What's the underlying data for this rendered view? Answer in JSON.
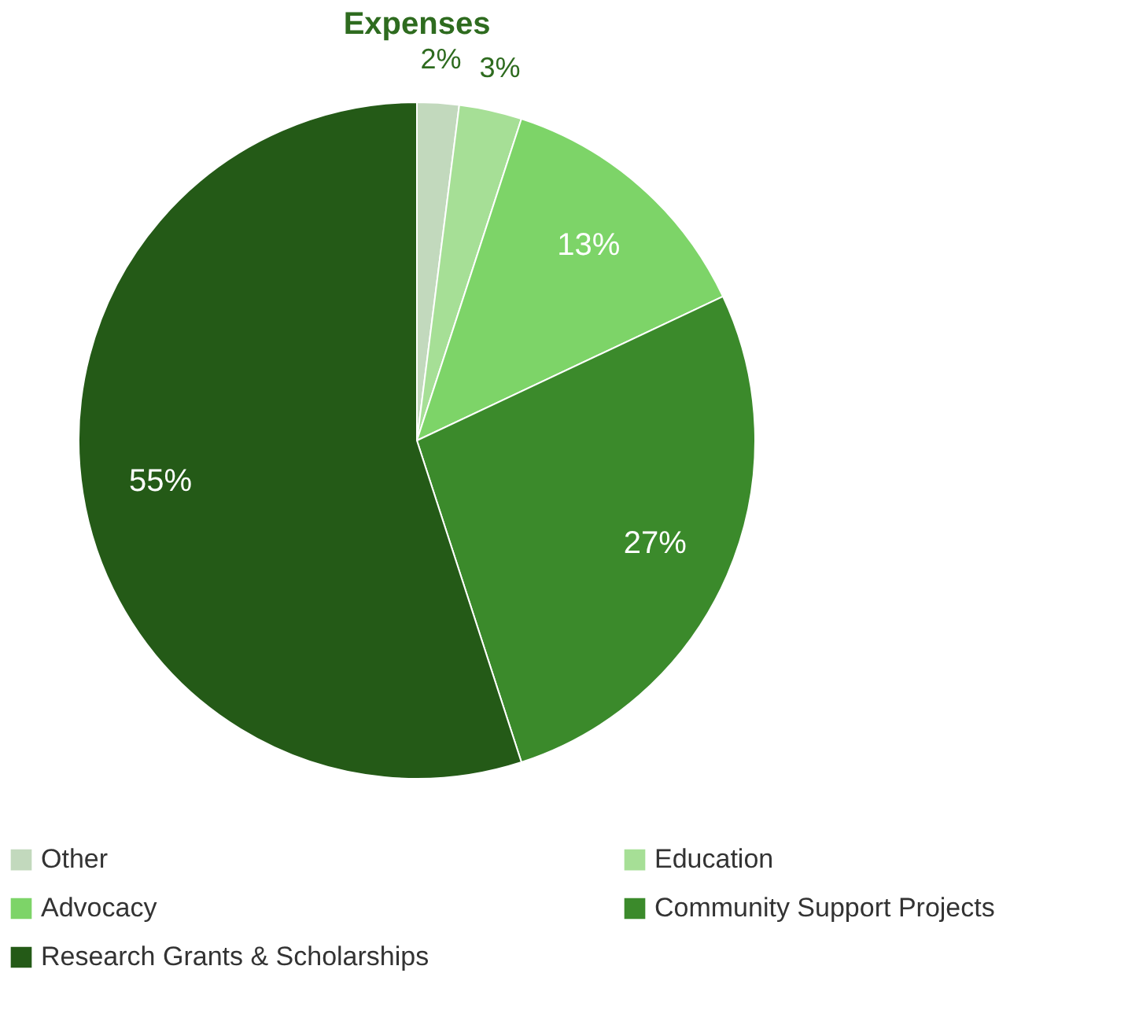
{
  "chart_data": {
    "type": "pie",
    "title": "Expenses",
    "categories": [
      "Other",
      "Education",
      "Advocacy",
      "Community Support Projects",
      "Research Grants & Scholarships"
    ],
    "values": [
      2,
      3,
      13,
      27,
      55
    ],
    "colors": [
      "#c2d9bd",
      "#a6df96",
      "#7dd468",
      "#3b8a2b",
      "#245a17"
    ],
    "value_labels": [
      "2%",
      "3%",
      "13%",
      "27%",
      "55%"
    ],
    "legend": "bottom"
  }
}
